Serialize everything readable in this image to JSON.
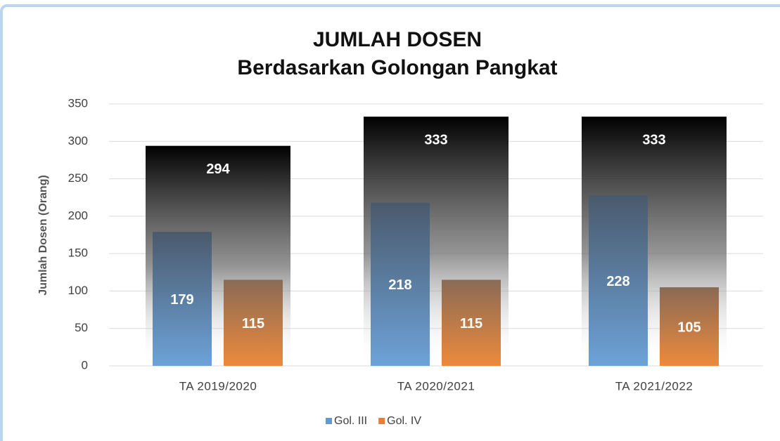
{
  "chart_data": {
    "type": "bar",
    "title": "JUMLAH DOSEN",
    "subtitle": "Berdasarkan Golongan Pangkat",
    "y_label": "Jumlah Dosen (Orang)",
    "categories": [
      "TA 2019/2020",
      "TA 2020/2021",
      "TA 2021/2022"
    ],
    "totals": [
      294,
      333,
      333
    ],
    "totals_color": "#000000",
    "series": [
      {
        "name": "Gol. III",
        "color": "#5b9bd5",
        "values": [
          179,
          218,
          228
        ]
      },
      {
        "name": "Gol. IV",
        "color": "#ed7d31",
        "values": [
          115,
          115,
          105
        ]
      }
    ],
    "ylim": [
      0,
      350
    ],
    "yticks": [
      0,
      50,
      100,
      150,
      200,
      250,
      300,
      350
    ],
    "grid": true,
    "legend": "bottom"
  }
}
